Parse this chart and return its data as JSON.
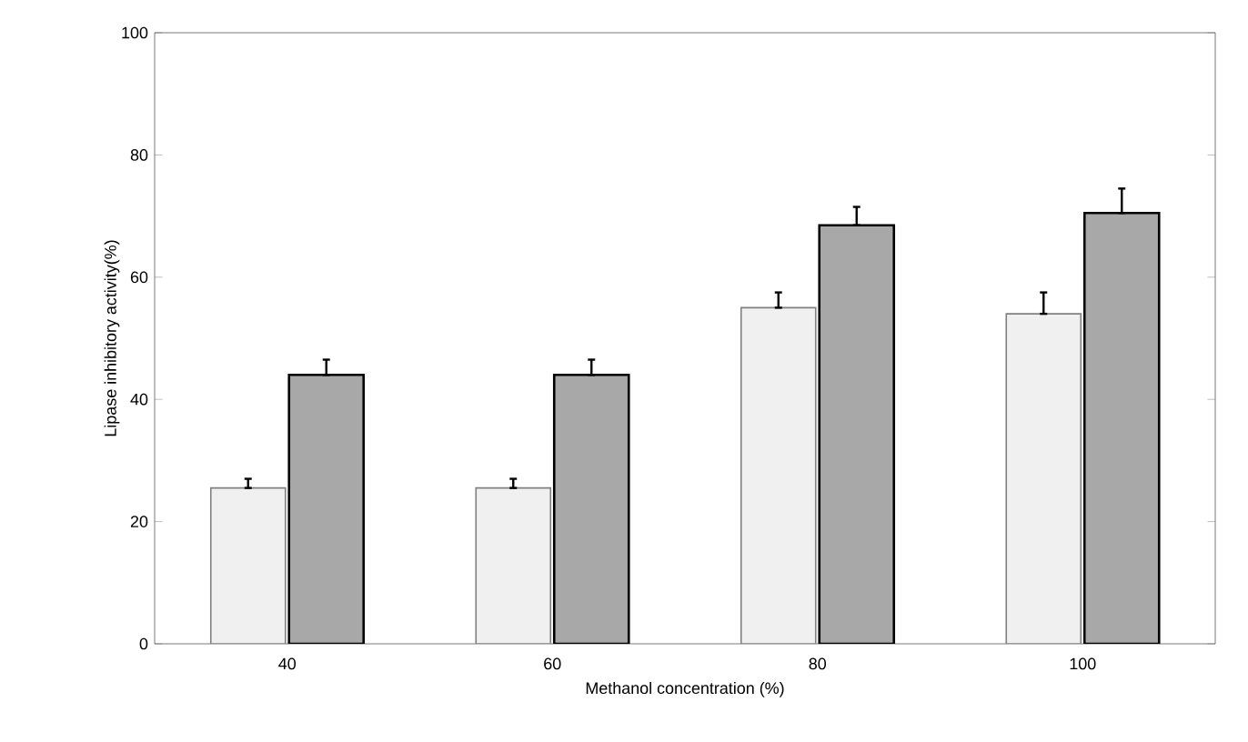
{
  "chart_data": {
    "type": "bar",
    "xlabel": "Methanol  concentration  (%)",
    "ylabel": "Lipase inhibitory activity(%)",
    "categories": [
      "40",
      "60",
      "80",
      "100"
    ],
    "series": [
      {
        "color": "#f0f0f0",
        "values": [
          25.5,
          25.5,
          55,
          54
        ],
        "errors": [
          [
            25.5,
            27
          ],
          [
            25.5,
            27
          ],
          [
            55,
            57.5
          ],
          [
            54,
            57.5
          ]
        ]
      },
      {
        "color": "#a8a8a8",
        "values": [
          44,
          44,
          68.5,
          70.5
        ],
        "errors": [
          [
            44,
            46.5
          ],
          [
            44,
            46.5
          ],
          [
            68.5,
            71.5
          ],
          [
            70.5,
            74.5
          ]
        ]
      }
    ],
    "ylim": [
      0,
      100
    ],
    "yticks": [
      0,
      20,
      40,
      60,
      80,
      100
    ],
    "grid": false
  }
}
